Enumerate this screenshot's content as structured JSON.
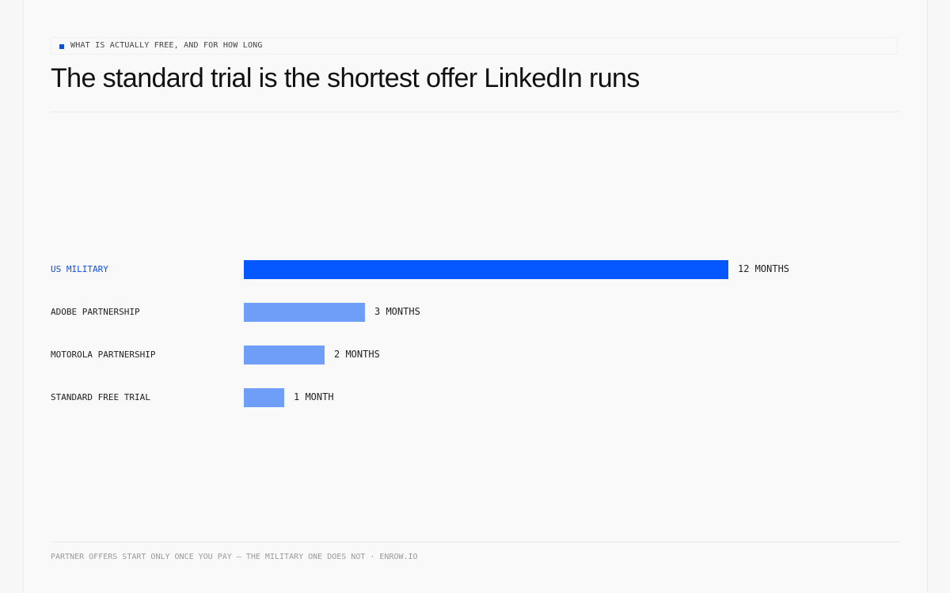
{
  "kicker": "WHAT IS ACTUALLY FREE, AND FOR HOW LONG",
  "title": "The standard trial is the shortest offer LinkedIn runs",
  "footer": "PARTNER OFFERS START ONLY ONCE YOU PAY — THE MILITARY ONE DOES NOT · ENROW.IO",
  "colors": {
    "accent": "#0558ff",
    "bar": "#6f9ef8",
    "accent_text": "#0a4fe0"
  },
  "chart_data": {
    "type": "bar",
    "orientation": "horizontal",
    "unit": "months",
    "categories": [
      "US MILITARY",
      "ADOBE PARTNERSHIP",
      "MOTOROLA PARTNERSHIP",
      "STANDARD FREE TRIAL"
    ],
    "values": [
      12,
      3,
      2,
      1
    ],
    "value_labels": [
      "12 MONTHS",
      "3 MONTHS",
      "2 MONTHS",
      "1 MONTH"
    ],
    "highlighted": [
      "US MILITARY"
    ],
    "xlim": [
      0,
      12
    ],
    "grid": false,
    "legend": "none"
  }
}
